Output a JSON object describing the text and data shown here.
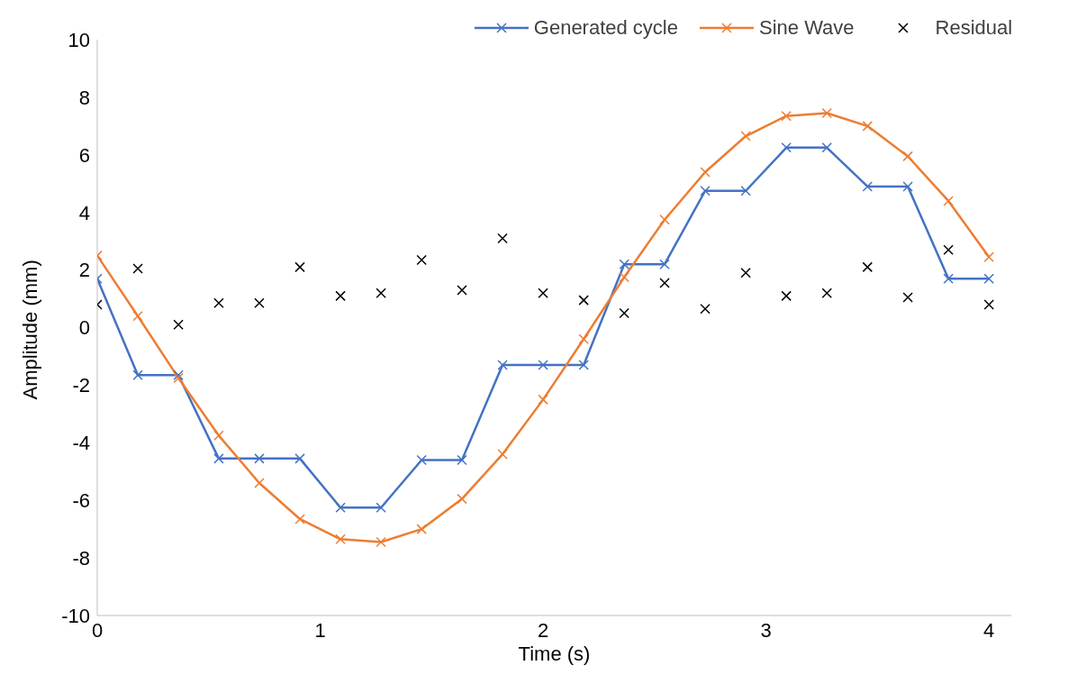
{
  "chart_data": {
    "type": "line",
    "xlabel": "Time (s)",
    "ylabel": "Amplitude (mm)",
    "x": [
      0,
      0.182,
      0.364,
      0.545,
      0.727,
      0.909,
      1.091,
      1.273,
      1.455,
      1.636,
      1.818,
      2,
      2.182,
      2.364,
      2.545,
      2.727,
      2.909,
      3.091,
      3.273,
      3.455,
      3.636,
      3.818,
      4
    ],
    "series": [
      {
        "name": "Generated cycle",
        "color": "#4472c4",
        "marker": "cross",
        "values": [
          1.7,
          -1.65,
          -1.65,
          -4.55,
          -4.55,
          -4.55,
          -6.25,
          -6.25,
          -4.6,
          -4.6,
          -1.3,
          -1.3,
          -1.3,
          2.2,
          2.2,
          4.75,
          4.75,
          6.25,
          6.25,
          4.9,
          4.9,
          1.7,
          1.7
        ]
      },
      {
        "name": "Sine Wave",
        "color": "#ed7d31",
        "marker": "cross",
        "values": [
          2.5,
          0.4,
          -1.75,
          -3.75,
          -5.4,
          -6.65,
          -7.35,
          -7.45,
          -7.0,
          -5.95,
          -4.4,
          -2.5,
          -0.4,
          1.75,
          3.75,
          5.4,
          6.65,
          7.35,
          7.45,
          7.0,
          5.95,
          4.4,
          2.45
        ]
      },
      {
        "name": "Residual",
        "type": "scatter",
        "color": "#000000",
        "marker": "cross",
        "values": [
          0.8,
          2.05,
          0.1,
          0.85,
          0.85,
          2.1,
          1.1,
          1.2,
          2.35,
          1.3,
          3.1,
          1.2,
          0.95,
          0.5,
          1.55,
          0.65,
          1.9,
          1.1,
          1.2,
          2.1,
          1.05,
          2.7,
          0.8
        ]
      }
    ],
    "xlim": [
      0,
      4.1
    ],
    "xticks": [
      0,
      1,
      2,
      3,
      4
    ],
    "ylim": [
      -10,
      10
    ],
    "yticks": [
      -10,
      -8,
      -6,
      -4,
      -2,
      0,
      2,
      4,
      6,
      8,
      10
    ],
    "grid": false,
    "legend": "top",
    "line_style": "solid"
  }
}
